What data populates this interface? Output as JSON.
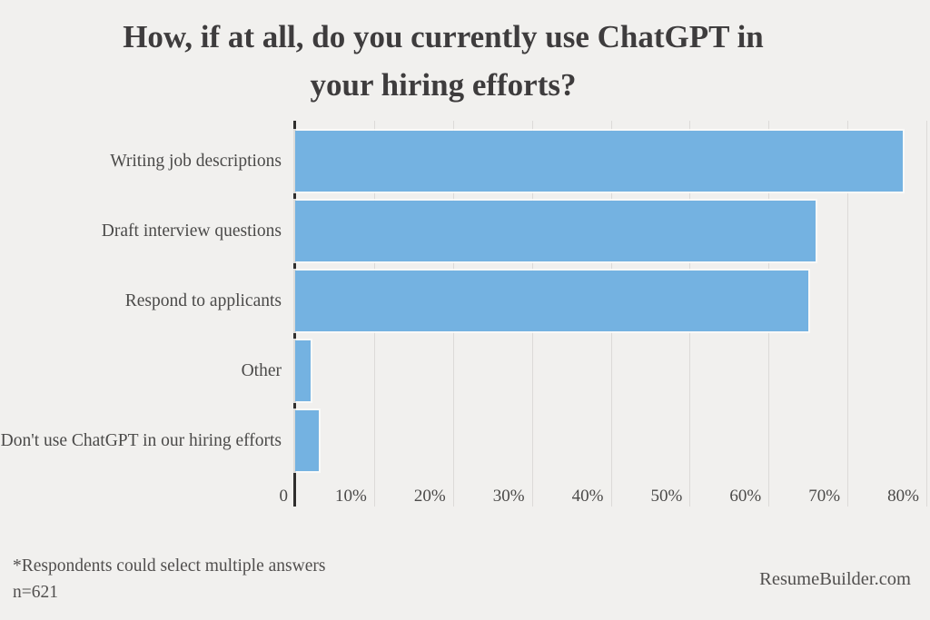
{
  "page": {
    "background_color": "#f1f0ee"
  },
  "chart_data": {
    "type": "bar",
    "orientation": "horizontal",
    "title": "How, if at all, do you currently use ChatGPT in your hiring efforts?",
    "title_lines": [
      "How, if at all, do you currently use ChatGPT in",
      "your hiring efforts?"
    ],
    "categories": [
      "Writing job descriptions",
      "Draft interview questions",
      "Respond to applicants",
      "Other",
      "Don't use ChatGPT in our hiring efforts"
    ],
    "values": [
      77,
      66,
      65,
      2,
      3
    ],
    "value_unit": "%",
    "xlim": [
      0,
      80
    ],
    "xticks": [
      {
        "value": 0,
        "label": "0"
      },
      {
        "value": 10,
        "label": "10%"
      },
      {
        "value": 20,
        "label": "20%"
      },
      {
        "value": 30,
        "label": "30%"
      },
      {
        "value": 40,
        "label": "40%"
      },
      {
        "value": 50,
        "label": "50%"
      },
      {
        "value": 60,
        "label": "60%"
      },
      {
        "value": 70,
        "label": "70%"
      },
      {
        "value": 80,
        "label": "80%"
      }
    ],
    "grid": true,
    "legend": false,
    "colors": {
      "bar": "#74b2e1",
      "axis_line": "#2f2e2d",
      "gridline": "#dcdad8",
      "category_text": "#4b4a49",
      "tick_text": "#4b4a49",
      "title_text": "#3e3c3d",
      "footer_text": "#514f4e",
      "background": "#f1f0ee"
    }
  },
  "footer": {
    "note": "*Respondents could select multiple answers",
    "sample": "n=621",
    "brand": "ResumeBuilder.com"
  }
}
